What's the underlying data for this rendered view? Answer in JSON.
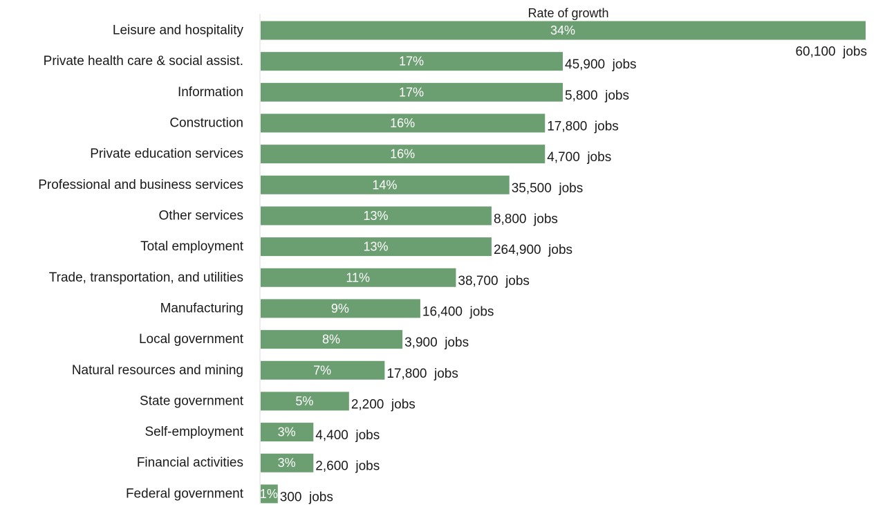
{
  "chart_data": {
    "type": "bar",
    "orientation": "horizontal",
    "title": "Rate of growth",
    "bar_color": "#6b9e71",
    "bar_label_color": "#ffffff",
    "value_unit": "%",
    "categories": [
      "Leisure and hospitality",
      "Private health care & social assist.",
      "Information",
      "Construction",
      "Private education services",
      "Professional and business services",
      "Other services",
      "Total employment",
      "Trade, transportation, and utilities",
      "Manufacturing",
      "Local government",
      "Natural resources and mining",
      "State government",
      "Self-employment",
      "Financial activities",
      "Federal government"
    ],
    "values": [
      34,
      17,
      17,
      16,
      16,
      14,
      13,
      13,
      11,
      9,
      8,
      7,
      5,
      3,
      3,
      1
    ],
    "bar_labels": [
      "34%",
      "17%",
      "17%",
      "16%",
      "16%",
      "14%",
      "13%",
      "13%",
      "11%",
      "9%",
      "8%",
      "7%",
      "5%",
      "3%",
      "3%",
      "1%"
    ],
    "jobs_labels": [
      "60,100  jobs",
      "45,900  jobs",
      "5,800  jobs",
      "17,800  jobs",
      "4,700  jobs",
      "35,500  jobs",
      "8,800  jobs",
      "264,900  jobs",
      "38,700  jobs",
      "16,400  jobs",
      "3,900  jobs",
      "17,800  jobs",
      "2,200  jobs",
      "4,400  jobs",
      "2,600  jobs",
      "300  jobs"
    ],
    "xlim": [
      0,
      34
    ],
    "grid": false,
    "legend": "none"
  }
}
